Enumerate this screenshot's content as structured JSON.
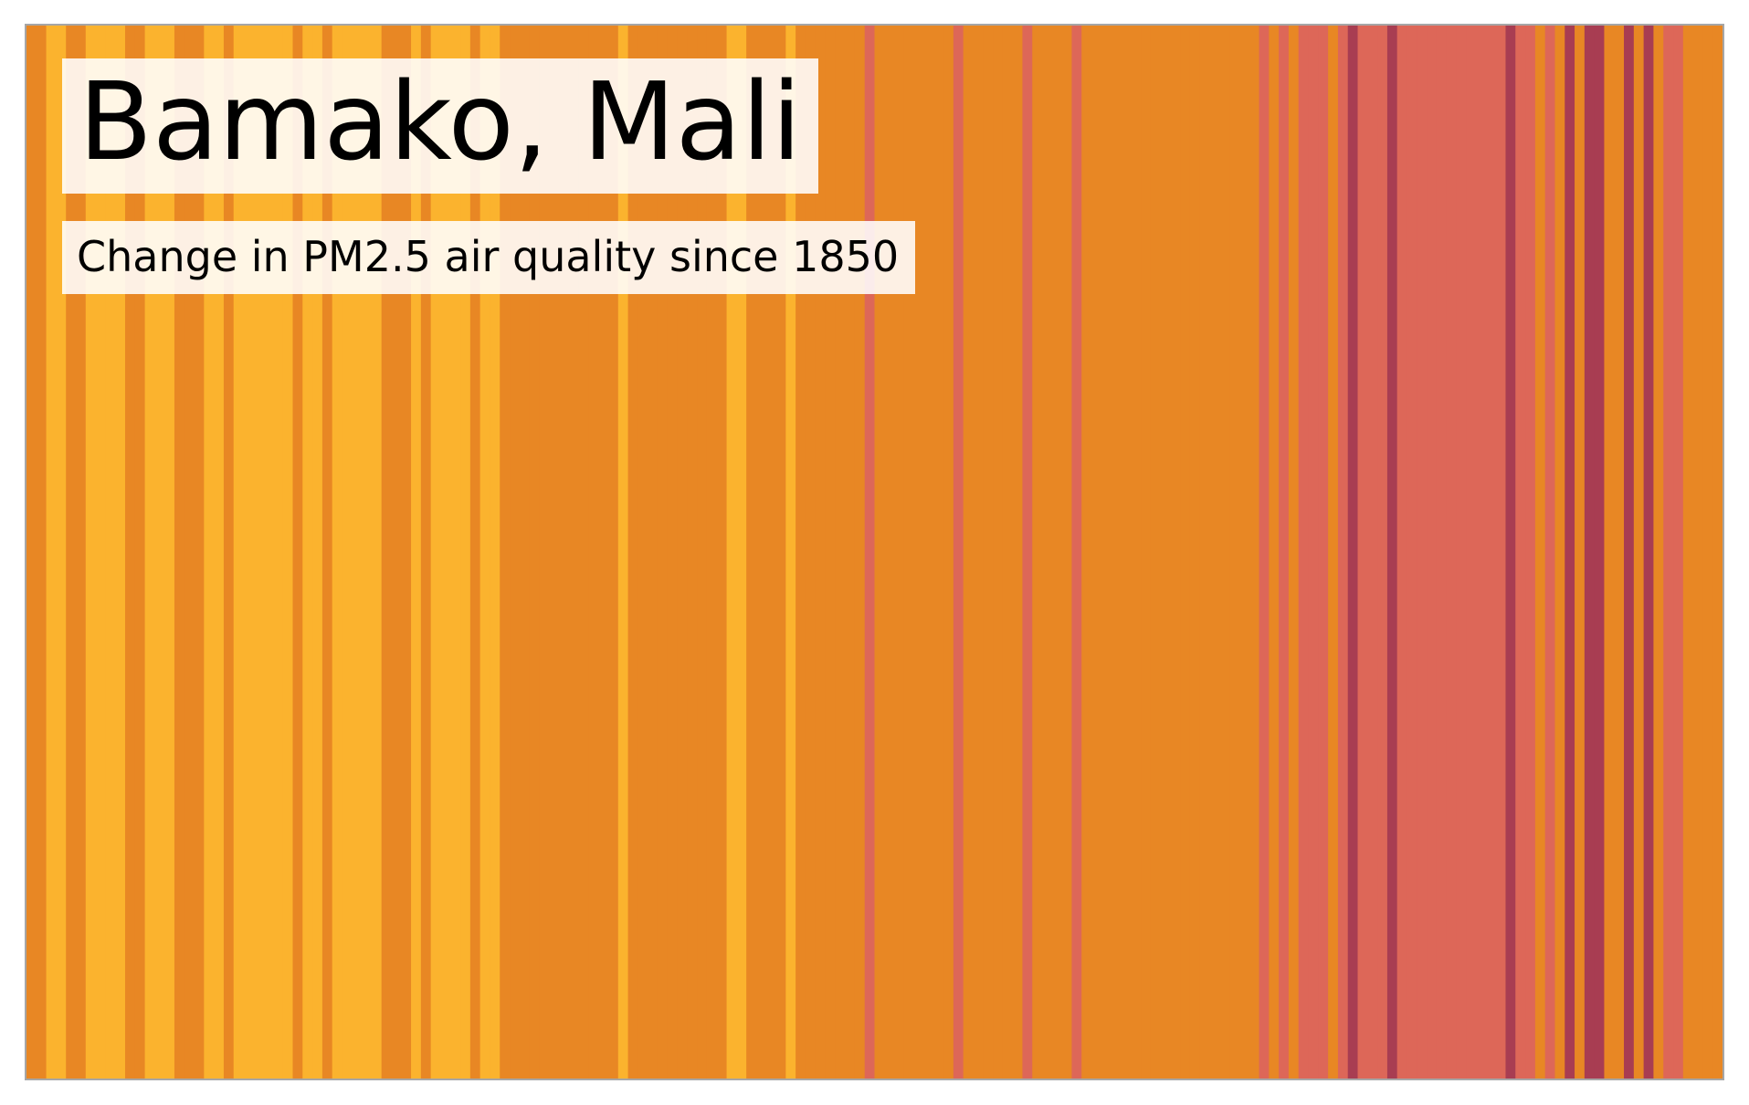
{
  "chart_data": {
    "type": "heatmap",
    "title": "Bamako, Mali",
    "subtitle": "Change in PM2.5 air quality since 1850",
    "palette": {
      "1": "#FBB32E",
      "2": "#E88724",
      "3": "#DD6758",
      "4": "#A83D52"
    },
    "legend": "none",
    "x_start_year": 1850,
    "x_end_year": 2021,
    "values": [
      2,
      2,
      1,
      1,
      2,
      2,
      1,
      1,
      1,
      1,
      2,
      2,
      1,
      1,
      1,
      2,
      2,
      2,
      1,
      1,
      2,
      1,
      1,
      1,
      1,
      1,
      1,
      2,
      1,
      1,
      2,
      1,
      1,
      1,
      1,
      1,
      2,
      2,
      2,
      1,
      2,
      1,
      1,
      1,
      1,
      2,
      1,
      1,
      2,
      2,
      2,
      2,
      2,
      2,
      2,
      2,
      2,
      2,
      2,
      2,
      1,
      2,
      2,
      2,
      2,
      2,
      2,
      2,
      2,
      2,
      2,
      1,
      1,
      2,
      2,
      2,
      2,
      1,
      2,
      2,
      2,
      2,
      2,
      2,
      2,
      3,
      2,
      2,
      2,
      2,
      2,
      2,
      2,
      2,
      3,
      2,
      2,
      2,
      2,
      2,
      2,
      3,
      2,
      2,
      2,
      2,
      3,
      2,
      2,
      2,
      2,
      2,
      2,
      2,
      2,
      2,
      2,
      2,
      2,
      2,
      2,
      2,
      2,
      2,
      2,
      3,
      2,
      3,
      2,
      3,
      3,
      3,
      2,
      3,
      4,
      3,
      3,
      3,
      4,
      3,
      3,
      3,
      3,
      3,
      3,
      3,
      3,
      3,
      3,
      3,
      4,
      3,
      3,
      2,
      3,
      2,
      4,
      2,
      4,
      4,
      2,
      2,
      4,
      2,
      4,
      2,
      3,
      3,
      2,
      2,
      2,
      2
    ]
  }
}
